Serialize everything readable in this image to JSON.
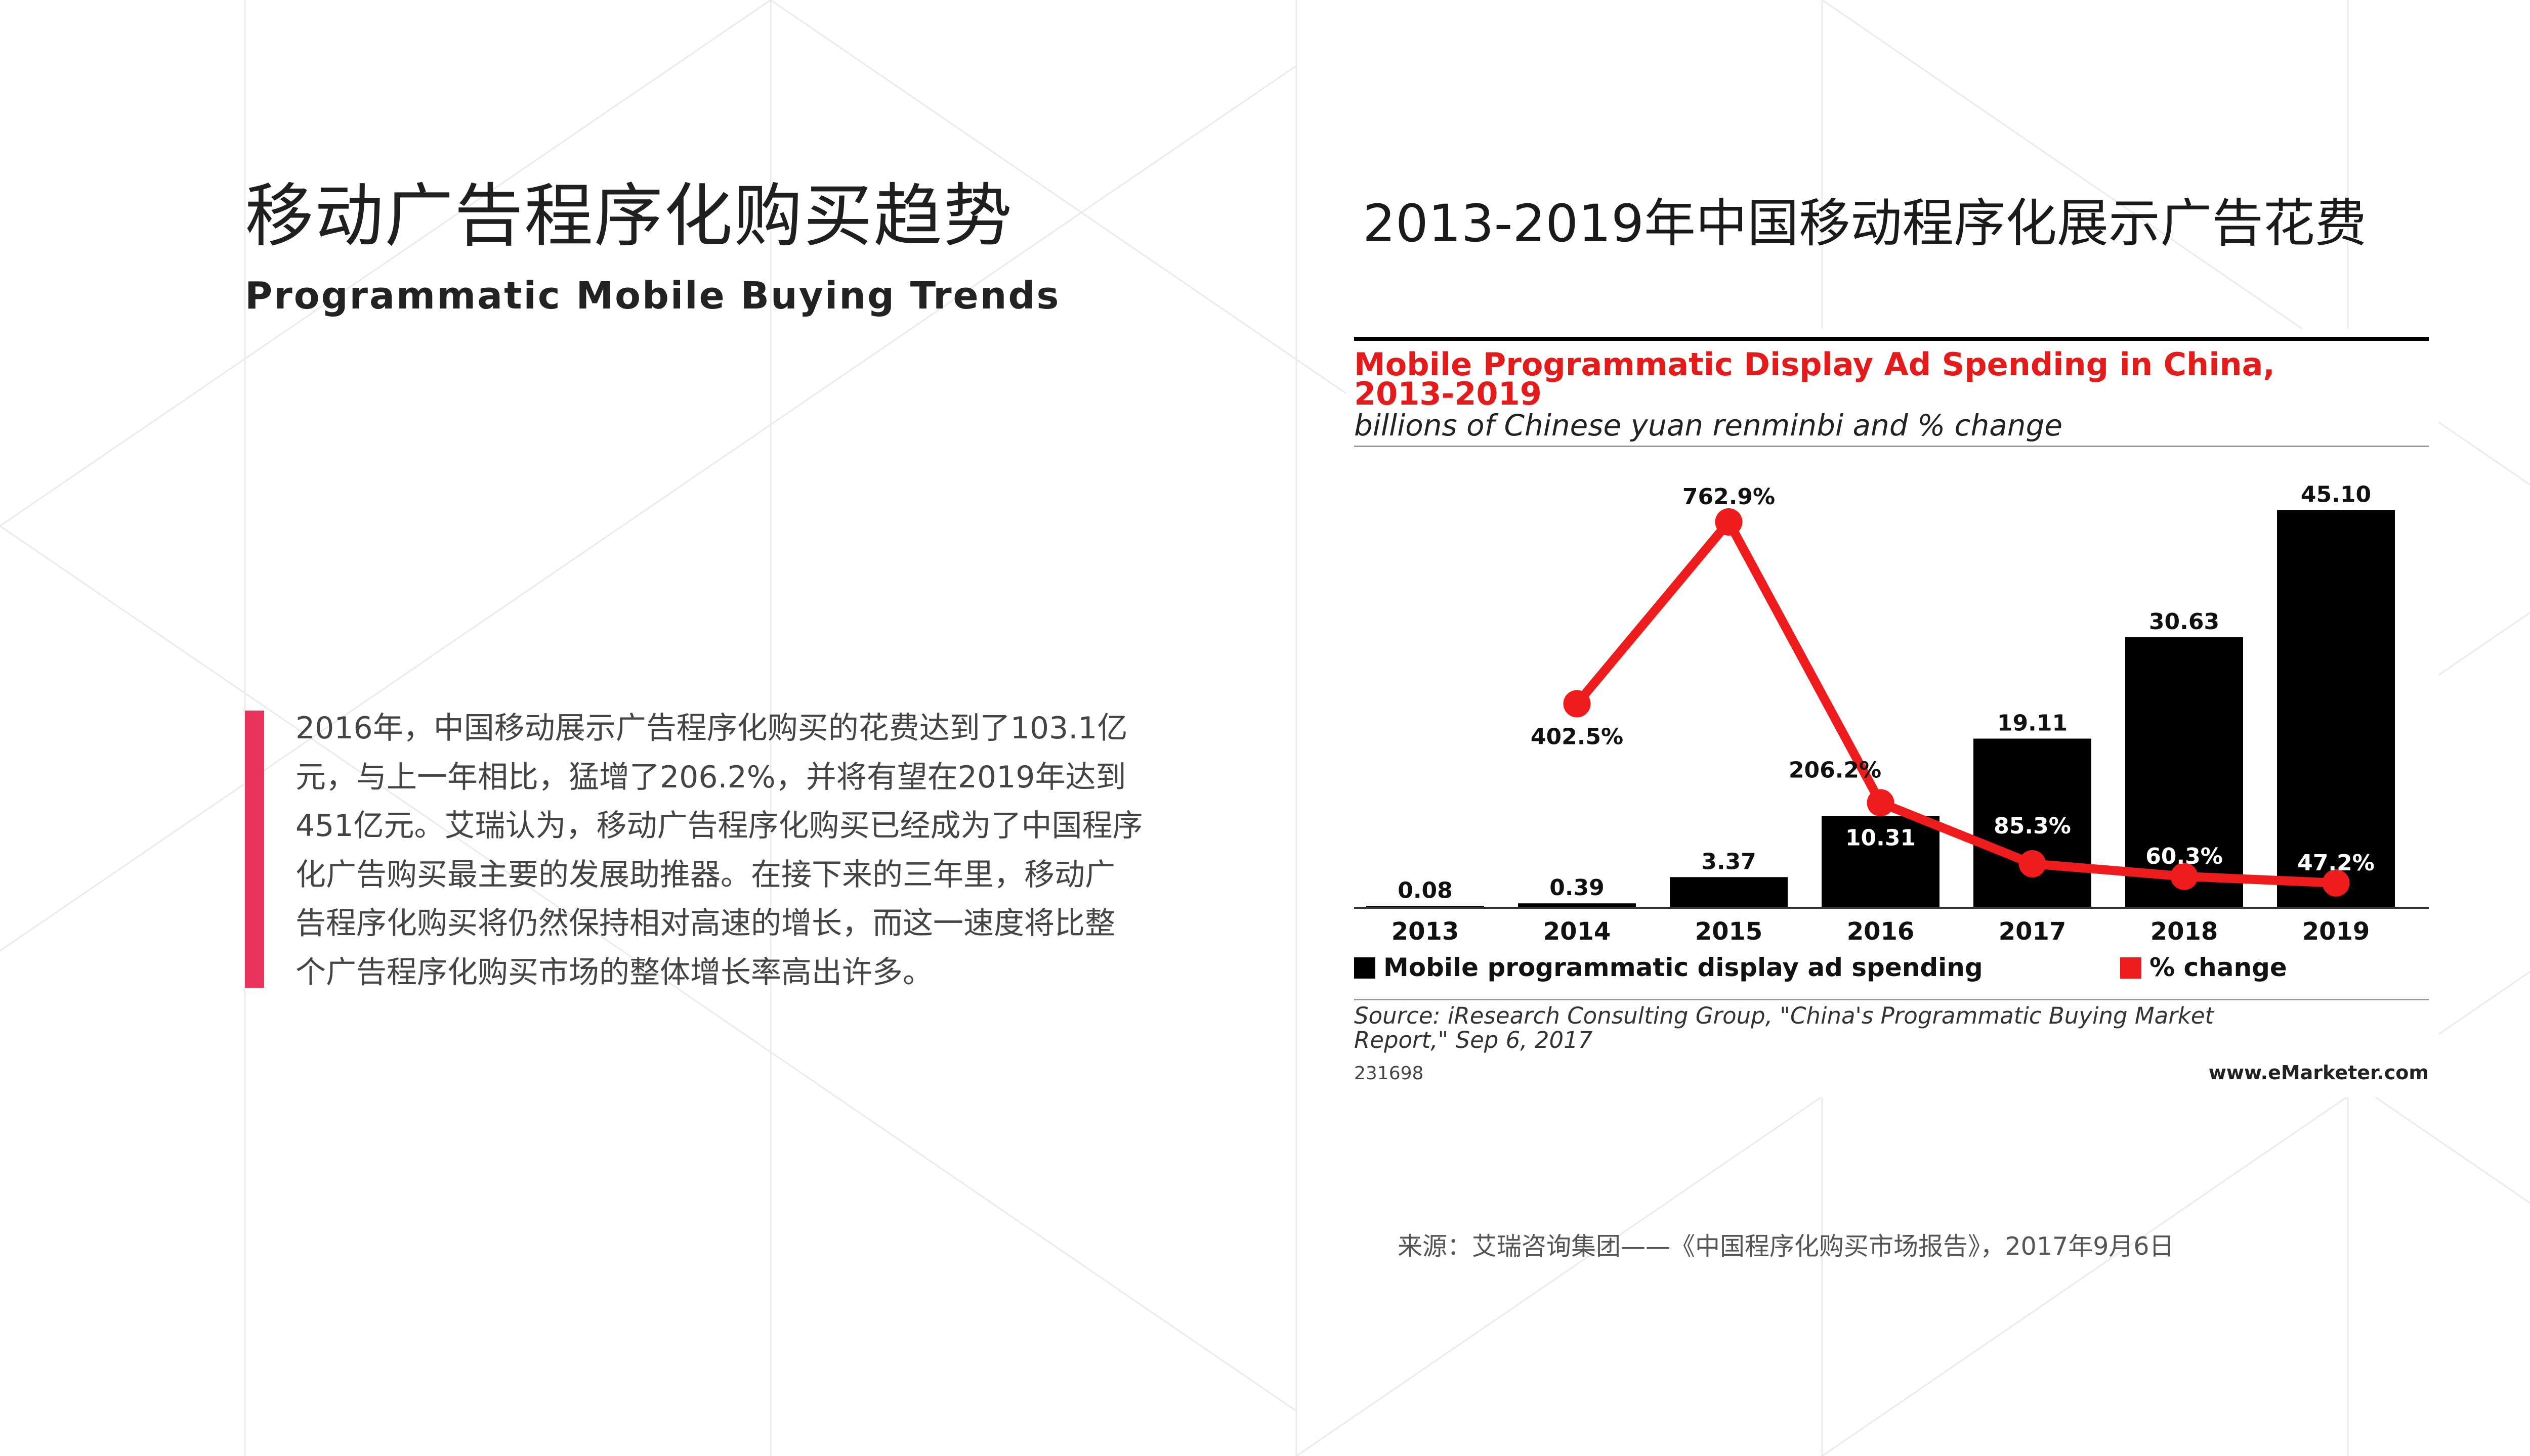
{
  "colors": {
    "accent": "#e8345d",
    "bar": "#000000",
    "line": "#ee1c1c",
    "grid": "#e9e9e9"
  },
  "heading": {
    "title_zh": "移动广告程序化购买趋势",
    "title_en": "Programmatic Mobile Buying Trends"
  },
  "paragraph": {
    "lines": [
      "2016年，中国移动展示广告程序化购买的花费达到了103.1亿",
      "元，与上一年相比，猛增了206.2%，并将有望在2019年达到",
      "451亿元。艾瑞认为，移动广告程序化购买已经成为了中国程序",
      "化广告购买最主要的发展助推器。在接下来的三年里，移动广",
      "告程序化购买将仍然保持相对高速的增长，而这一速度将比整",
      "个广告程序化购买市场的整体增长率高出许多。"
    ]
  },
  "chart_heading": "2013-2019年中国移动程序化展示广告花费",
  "source_note": "来源：艾瑞咨询集团——《中国程序化购买市场报告》，2017年9月6日",
  "chart_data": {
    "type": "bar",
    "title": "Mobile Programmatic Display Ad Spending in China, 2013-2019",
    "title_lines": [
      "Mobile Programmatic Display Ad Spending in China,",
      "2013-2019"
    ],
    "subtitle": "billions of Chinese yuan renminbi and % change",
    "categories": [
      "2013",
      "2014",
      "2015",
      "2016",
      "2017",
      "2018",
      "2019"
    ],
    "series": [
      {
        "name": "Mobile programmatic display ad spending",
        "kind": "bar",
        "values": [
          0.08,
          0.39,
          3.37,
          10.31,
          19.11,
          30.63,
          45.1
        ],
        "labels": [
          "0.08",
          "0.39",
          "3.37",
          "10.31",
          "19.11",
          "30.63",
          "45.10"
        ]
      },
      {
        "name": "% change",
        "kind": "line",
        "values": [
          null,
          402.5,
          762.9,
          206.2,
          85.3,
          60.3,
          47.2
        ],
        "labels": [
          "",
          "402.5%",
          "762.9%",
          "206.2%",
          "85.3%",
          "60.3%",
          "47.2%"
        ]
      }
    ],
    "legend_position": "bottom-left",
    "grid": false,
    "source_lines": [
      "Source: iResearch Consulting Group, \"China's Programmatic Buying Market",
      "Report,\" Sep 6, 2017"
    ],
    "chart_id": "231698",
    "brand": "www.eMarketer.com"
  }
}
